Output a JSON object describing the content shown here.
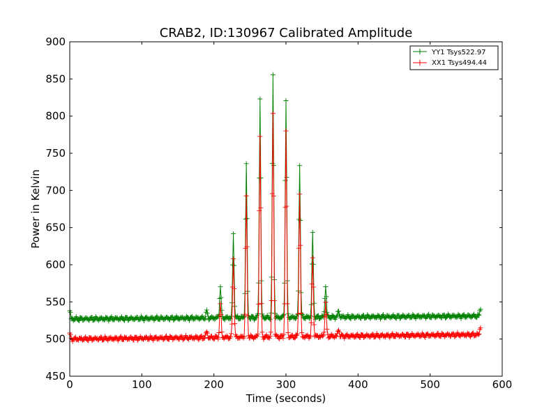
{
  "chart_data": {
    "type": "line",
    "title": "CRAB2, ID:130967 Calibrated Amplitude",
    "xlabel": "Time (seconds)",
    "ylabel": "Power in Kelvin",
    "xlim": [
      0,
      600
    ],
    "ylim": [
      450,
      900
    ],
    "xticks": [
      "0",
      "100",
      "200",
      "300",
      "400",
      "500",
      "600"
    ],
    "yticks": [
      "450",
      "500",
      "550",
      "600",
      "650",
      "700",
      "750",
      "800",
      "850",
      "900"
    ],
    "grid": false,
    "legend_position": "top-right",
    "marker": "+",
    "x_step": 1,
    "x_end": 570,
    "series": [
      {
        "name": "YY1 Tsys522.97",
        "color": "#008000",
        "baseline": 527,
        "baseline_end": 531,
        "start_value": 538,
        "end_value": 540,
        "peaks": [
          {
            "x": 190,
            "y": 536
          },
          {
            "x": 209,
            "y": 570
          },
          {
            "x": 227,
            "y": 639
          },
          {
            "x": 245,
            "y": 735
          },
          {
            "x": 264,
            "y": 823
          },
          {
            "x": 282,
            "y": 852
          },
          {
            "x": 300,
            "y": 820
          },
          {
            "x": 319,
            "y": 734
          },
          {
            "x": 337,
            "y": 639
          },
          {
            "x": 355,
            "y": 569
          },
          {
            "x": 373,
            "y": 535
          }
        ]
      },
      {
        "name": "XX1 Tsys494.44",
        "color": "#ff0000",
        "baseline": 500,
        "baseline_end": 506,
        "start_value": 508,
        "end_value": 515,
        "peaks": [
          {
            "x": 190,
            "y": 508
          },
          {
            "x": 209,
            "y": 545
          },
          {
            "x": 227,
            "y": 607
          },
          {
            "x": 245,
            "y": 688
          },
          {
            "x": 264,
            "y": 771
          },
          {
            "x": 282,
            "y": 801
          },
          {
            "x": 300,
            "y": 775
          },
          {
            "x": 319,
            "y": 692
          },
          {
            "x": 337,
            "y": 606
          },
          {
            "x": 355,
            "y": 545
          },
          {
            "x": 373,
            "y": 509
          }
        ]
      }
    ]
  }
}
